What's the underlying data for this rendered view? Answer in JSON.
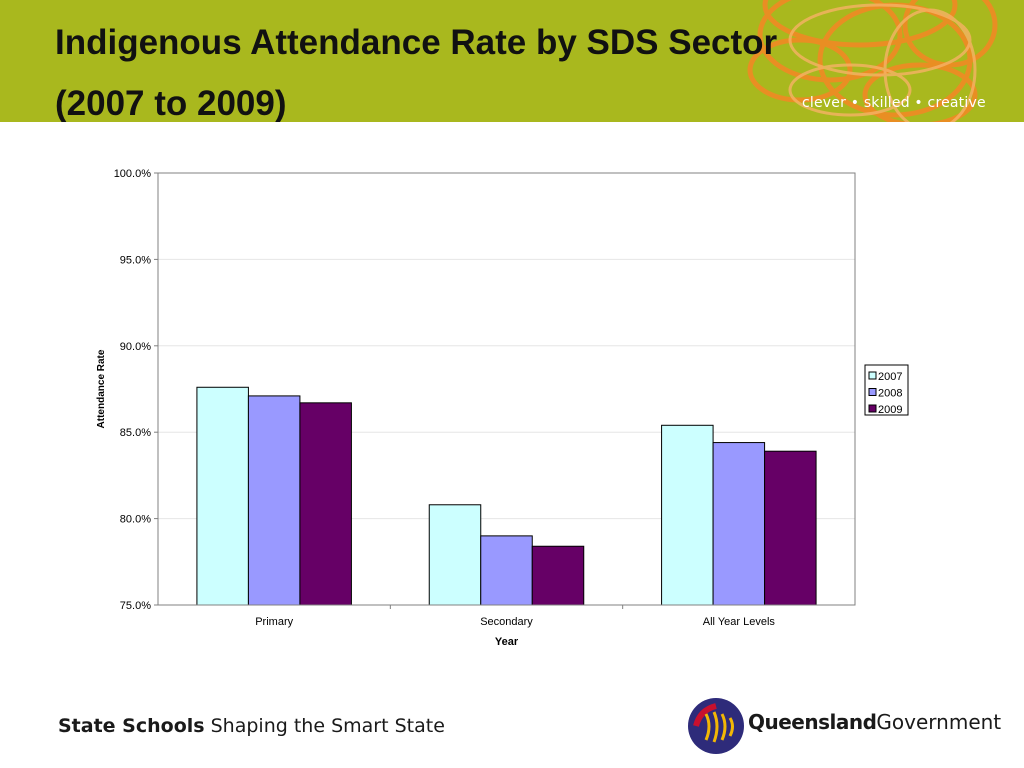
{
  "header": {
    "title_line1": "Indigenous Attendance Rate by SDS Sector",
    "title_line2": "(2007 to 2009)",
    "tagline": "clever • skilled • creative"
  },
  "footer": {
    "brand_bold": "State Schools",
    "brand_rest": "Shaping the Smart State",
    "gov_bold": "Queensland",
    "gov_rest": "Government"
  },
  "colors": {
    "banner": "#a9b81e",
    "swirl": "#f08a24",
    "series_2007": "#ccffff",
    "series_2008": "#9999ff",
    "series_2009": "#660066",
    "qld_logo_dark": "#2e2b7a",
    "qld_logo_accent": "#c8102e",
    "qld_logo_gold": "#f2b705"
  },
  "chart_data": {
    "type": "bar",
    "categories": [
      "Primary",
      "Secondary",
      "All Year Levels"
    ],
    "series": [
      {
        "name": "2007",
        "color": "#ccffff",
        "values": [
          87.6,
          80.8,
          85.4
        ]
      },
      {
        "name": "2008",
        "color": "#9999ff",
        "values": [
          87.1,
          79.0,
          84.4
        ]
      },
      {
        "name": "2009",
        "color": "#660066",
        "values": [
          86.7,
          78.4,
          83.9
        ]
      }
    ],
    "xlabel": "Year",
    "ylabel": "Attendance Rate",
    "ylim": [
      75,
      100
    ],
    "yticks": [
      "75.0%",
      "80.0%",
      "85.0%",
      "90.0%",
      "95.0%",
      "100.0%"
    ],
    "ytick_values": [
      75,
      80,
      85,
      90,
      95,
      100
    ],
    "grid": true,
    "legend_position": "right"
  }
}
